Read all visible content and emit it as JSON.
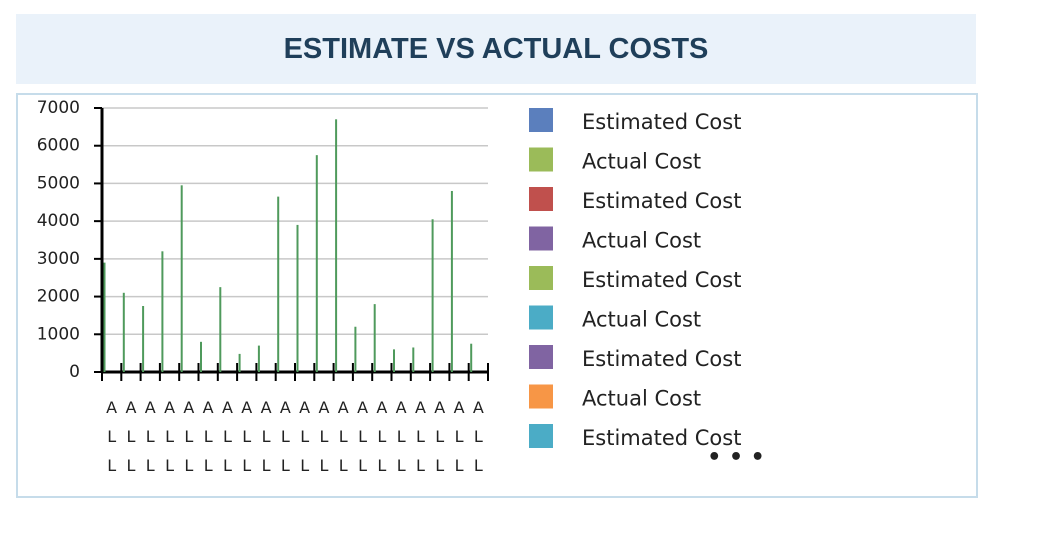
{
  "header": {
    "title": "ESTIMATE VS ACTUAL COSTS"
  },
  "chart_data": {
    "type": "bar",
    "categories": [
      "ALL",
      "ALL",
      "ALL",
      "ALL",
      "ALL",
      "ALL",
      "ALL",
      "ALL",
      "ALL",
      "ALL",
      "ALL",
      "ALL",
      "ALL",
      "ALL",
      "ALL",
      "ALL",
      "ALL",
      "ALL",
      "ALL",
      "ALL"
    ],
    "values": [
      2900,
      2100,
      1750,
      3200,
      4950,
      800,
      2250,
      480,
      700,
      4650,
      3900,
      5750,
      6700,
      1200,
      1800,
      600,
      650,
      4050,
      4800,
      750
    ],
    "color": "#4f9a5c",
    "ylim": [
      0,
      7000
    ],
    "yticks": [
      0,
      1000,
      2000,
      3000,
      4000,
      5000,
      6000,
      7000
    ],
    "grid": true,
    "legend": [
      {
        "name": "Estimated Cost",
        "color": "#5b7fbd"
      },
      {
        "name": "Actual Cost",
        "color": "#9bbb59"
      },
      {
        "name": "Estimated Cost",
        "color": "#c0504d"
      },
      {
        "name": "Actual Cost",
        "color": "#8064a2"
      },
      {
        "name": "Estimated Cost",
        "color": "#9bbb59"
      },
      {
        "name": "Actual Cost",
        "color": "#4bacc6"
      },
      {
        "name": "Estimated Cost",
        "color": "#8064a2"
      },
      {
        "name": "Actual Cost",
        "color": "#f79646"
      },
      {
        "name": "Estimated Cost",
        "color": "#4bacc6"
      }
    ],
    "legend_more": "• • •"
  }
}
